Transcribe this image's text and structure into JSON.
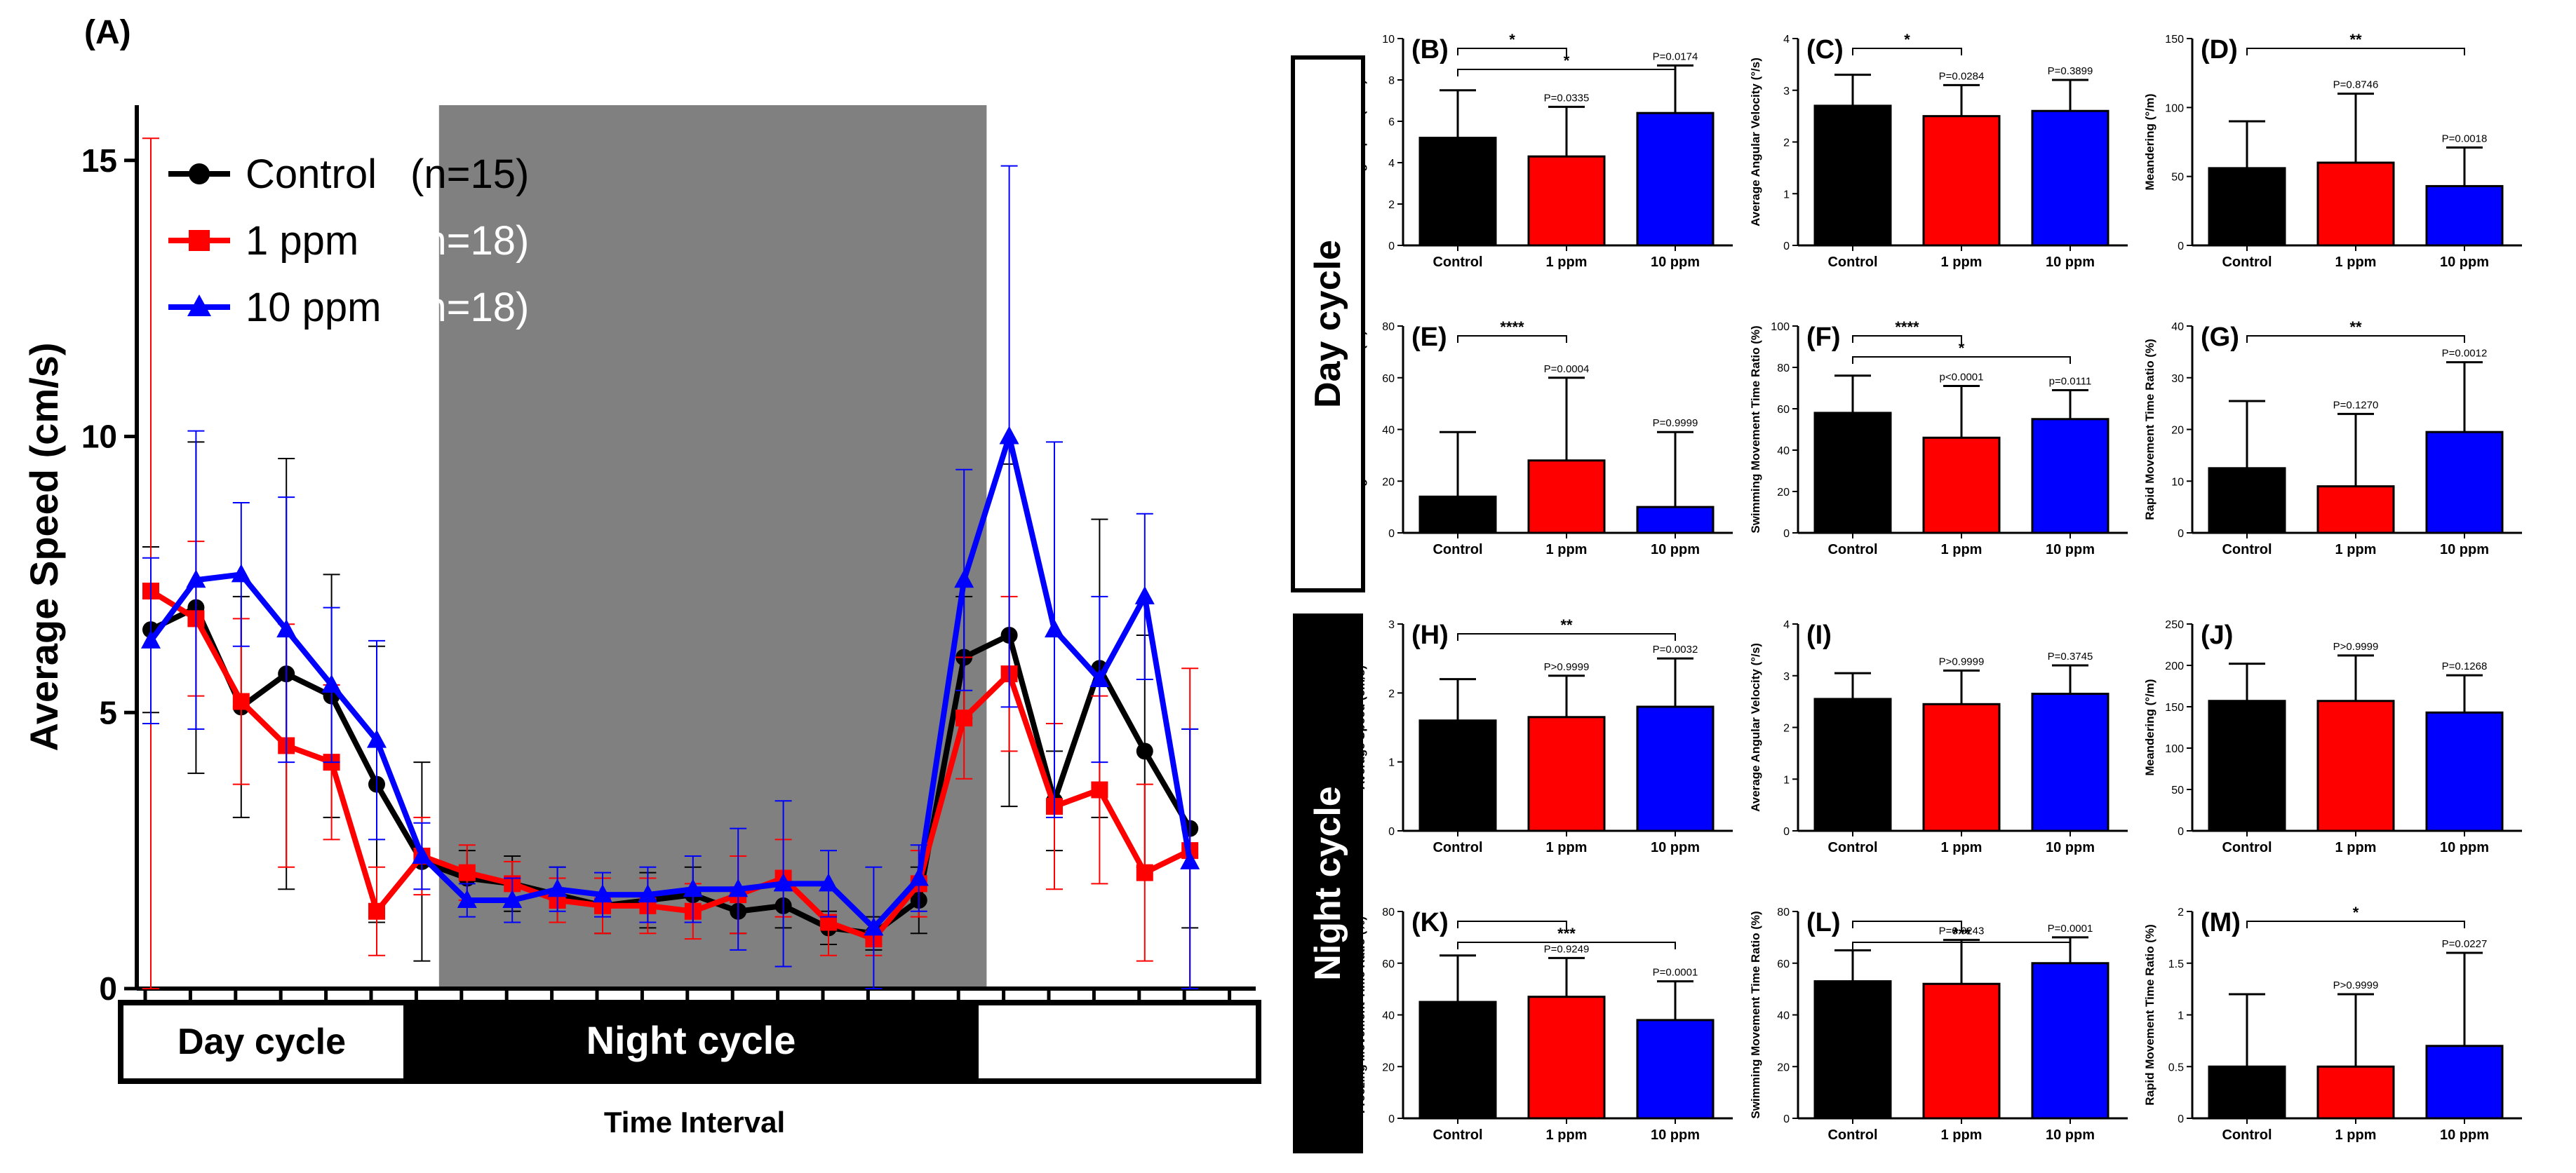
{
  "colors": {
    "control": "#000000",
    "ppm1": "#ff0000",
    "ppm10": "#0000ff",
    "night_shade": "#808080"
  },
  "chart_data": [
    {
      "id": "A",
      "type": "line",
      "panel_label": "(A)",
      "ylabel": "Average Speed (cm/s)",
      "xlabel": "Time Interval",
      "ylim": [
        0,
        16
      ],
      "yticks": [
        0,
        5,
        10,
        15
      ],
      "n_points": 24,
      "night_range_index": [
        7,
        18.5
      ],
      "cycle_bar": {
        "day_label": "Day cycle",
        "night_label": "Night cycle"
      },
      "legend": [
        {
          "name": "Control",
          "n": "(n=15)",
          "marker": "circle"
        },
        {
          "name": "1 ppm",
          "n": "(n=18)",
          "marker": "square"
        },
        {
          "name": "10 ppm",
          "n": "(n=18)",
          "marker": "triangle"
        }
      ],
      "series": [
        {
          "name": "Control",
          "marker": "circle",
          "values": [
            6.5,
            6.9,
            5.1,
            5.7,
            5.3,
            3.7,
            2.3,
            2.0,
            1.9,
            1.7,
            1.5,
            1.6,
            1.7,
            1.4,
            1.5,
            1.1,
            1.0,
            1.6,
            6.0,
            6.4,
            3.4,
            5.8,
            4.3,
            2.9
          ],
          "errors": [
            1.5,
            3.0,
            2.0,
            3.9,
            2.2,
            2.5,
            1.8,
            0.5,
            0.5,
            0.5,
            0.5,
            0.5,
            0.5,
            0.4,
            0.4,
            0.3,
            0.3,
            0.6,
            1.1,
            3.1,
            0.9,
            2.7,
            2.1,
            1.8
          ]
        },
        {
          "name": "1 ppm",
          "marker": "square",
          "values": [
            7.2,
            6.7,
            5.2,
            4.4,
            4.1,
            1.4,
            2.4,
            2.1,
            1.9,
            1.6,
            1.5,
            1.5,
            1.4,
            1.7,
            2.0,
            1.2,
            0.9,
            1.9,
            4.9,
            5.7,
            3.3,
            3.6,
            2.1,
            2.5
          ],
          "errors": [
            8.2,
            1.4,
            1.5,
            2.2,
            1.4,
            0.8,
            0.7,
            0.5,
            0.4,
            0.4,
            0.5,
            0.5,
            0.5,
            0.7,
            0.7,
            0.6,
            0.3,
            0.6,
            1.1,
            1.4,
            1.5,
            1.7,
            1.6,
            3.3
          ]
        },
        {
          "name": "10 ppm",
          "marker": "triangle",
          "values": [
            6.3,
            7.4,
            7.5,
            6.5,
            5.5,
            4.5,
            2.4,
            1.6,
            1.6,
            1.8,
            1.7,
            1.7,
            1.8,
            1.8,
            1.9,
            1.9,
            1.1,
            2.0,
            7.4,
            10.0,
            6.5,
            5.6,
            7.1,
            2.3
          ],
          "errors": [
            1.5,
            2.7,
            1.3,
            2.4,
            1.4,
            1.8,
            0.6,
            0.3,
            0.4,
            0.4,
            0.4,
            0.5,
            0.6,
            1.1,
            1.5,
            0.6,
            1.1,
            0.6,
            2.0,
            4.9,
            3.4,
            1.5,
            1.5,
            2.4
          ]
        }
      ]
    },
    {
      "id": "B",
      "type": "bar",
      "panel_label": "(B)",
      "ylabel": "Average Speed (cm/s)",
      "categories": [
        "Control",
        "1 ppm",
        "10 ppm"
      ],
      "values": [
        5.2,
        4.3,
        6.4
      ],
      "errors": [
        2.3,
        2.4,
        2.3
      ],
      "ylim": [
        0,
        10
      ],
      "yticks": [
        0,
        2,
        4,
        6,
        8,
        10
      ],
      "pvalues": [
        "",
        "P=0.0335",
        "P=0.0174"
      ],
      "significance": [
        {
          "from": 0,
          "to": 1,
          "label": "*"
        },
        {
          "from": 0,
          "to": 2,
          "label": "*"
        }
      ]
    },
    {
      "id": "C",
      "type": "bar",
      "panel_label": "(C)",
      "ylabel": "Average Angular Velocity (°/s)",
      "categories": [
        "Control",
        "1 ppm",
        "10 ppm"
      ],
      "values": [
        2.7,
        2.5,
        2.6
      ],
      "errors": [
        0.6,
        0.6,
        0.6
      ],
      "ylim": [
        0,
        4
      ],
      "yticks": [
        0,
        1,
        2,
        3,
        4
      ],
      "pvalues": [
        "",
        "P=0.0284",
        "P=0.3899"
      ],
      "significance": [
        {
          "from": 0,
          "to": 1,
          "label": "*"
        }
      ]
    },
    {
      "id": "D",
      "type": "bar",
      "panel_label": "(D)",
      "ylabel": "Meandering (°/m)",
      "categories": [
        "Control",
        "1 ppm",
        "10 ppm"
      ],
      "values": [
        56,
        60,
        43
      ],
      "errors": [
        34,
        50,
        28
      ],
      "ylim": [
        0,
        150
      ],
      "yticks": [
        0,
        50,
        100,
        150
      ],
      "pvalues": [
        "",
        "P=0.8746",
        "P=0.0018"
      ],
      "significance": [
        {
          "from": 0,
          "to": 2,
          "label": "**"
        }
      ]
    },
    {
      "id": "E",
      "type": "bar",
      "panel_label": "(E)",
      "ylabel": "Freezing Movement Time Ratio (%)",
      "categories": [
        "Control",
        "1 ppm",
        "10 ppm"
      ],
      "values": [
        14,
        28,
        10
      ],
      "errors": [
        25,
        32,
        29
      ],
      "ylim": [
        0,
        80
      ],
      "yticks": [
        0,
        20,
        40,
        60,
        80
      ],
      "pvalues": [
        "",
        "P=0.0004",
        "P=0.9999"
      ],
      "significance": [
        {
          "from": 0,
          "to": 1,
          "label": "****"
        }
      ]
    },
    {
      "id": "F",
      "type": "bar",
      "panel_label": "(F)",
      "ylabel": "Swimming Movement Time Ratio (%)",
      "categories": [
        "Control",
        "1 ppm",
        "10 ppm"
      ],
      "values": [
        58,
        46,
        55
      ],
      "errors": [
        18,
        25,
        14
      ],
      "ylim": [
        0,
        100
      ],
      "yticks": [
        0,
        20,
        40,
        60,
        80,
        100
      ],
      "pvalues": [
        "",
        "p<0.0001",
        "p=0.0111"
      ],
      "significance": [
        {
          "from": 0,
          "to": 1,
          "label": "****"
        },
        {
          "from": 0,
          "to": 2,
          "label": "*"
        }
      ]
    },
    {
      "id": "G",
      "type": "bar",
      "panel_label": "(G)",
      "ylabel": "Rapid Movement Time Ratio (%)",
      "categories": [
        "Control",
        "1 ppm",
        "10 ppm"
      ],
      "values": [
        12.5,
        9,
        19.5
      ],
      "errors": [
        13,
        14,
        13.5
      ],
      "ylim": [
        0,
        40
      ],
      "yticks": [
        0,
        10,
        20,
        30,
        40
      ],
      "pvalues": [
        "",
        "P=0.1270",
        "P=0.0012"
      ],
      "significance": [
        {
          "from": 0,
          "to": 2,
          "label": "**"
        }
      ]
    },
    {
      "id": "H",
      "type": "bar",
      "panel_label": "(H)",
      "ylabel": "Average Speed (cm/s)",
      "categories": [
        "Control",
        "1 ppm",
        "10 ppm"
      ],
      "values": [
        1.6,
        1.65,
        1.8
      ],
      "errors": [
        0.6,
        0.6,
        0.7
      ],
      "ylim": [
        0,
        3
      ],
      "yticks": [
        0,
        1,
        2,
        3
      ],
      "pvalues": [
        "",
        "P>0.9999",
        "P=0.0032"
      ],
      "significance": [
        {
          "from": 0,
          "to": 2,
          "label": "**"
        }
      ]
    },
    {
      "id": "I",
      "type": "bar",
      "panel_label": "(I)",
      "ylabel": "Average Angular Velocity (°/s)",
      "categories": [
        "Control",
        "1 ppm",
        "10 ppm"
      ],
      "values": [
        2.55,
        2.45,
        2.65
      ],
      "errors": [
        0.5,
        0.65,
        0.55
      ],
      "ylim": [
        0,
        4
      ],
      "yticks": [
        0,
        1,
        2,
        3,
        4
      ],
      "pvalues": [
        "",
        "P>0.9999",
        "P=0.3745"
      ],
      "significance": []
    },
    {
      "id": "J",
      "type": "bar",
      "panel_label": "(J)",
      "ylabel": "Meandering (°/m)",
      "categories": [
        "Control",
        "1 ppm",
        "10 ppm"
      ],
      "values": [
        157,
        157,
        143
      ],
      "errors": [
        45,
        55,
        45
      ],
      "ylim": [
        0,
        250
      ],
      "yticks": [
        0,
        50,
        100,
        150,
        200,
        250
      ],
      "pvalues": [
        "",
        "P>0.9999",
        "P=0.1268"
      ],
      "significance": []
    },
    {
      "id": "K",
      "type": "bar",
      "panel_label": "(K)",
      "ylabel": "Freezing Movement Time Ratio (%)",
      "categories": [
        "Control",
        "1 ppm",
        "10 ppm"
      ],
      "values": [
        45,
        47,
        38
      ],
      "errors": [
        18,
        15,
        15
      ],
      "ylim": [
        0,
        80
      ],
      "yticks": [
        0,
        20,
        40,
        60,
        80
      ],
      "pvalues": [
        "",
        "P=0.9249",
        "P=0.0001"
      ],
      "significance": [
        {
          "from": 0,
          "to": 1,
          "label": ""
        },
        {
          "from": 0,
          "to": 2,
          "label": "***"
        }
      ]
    },
    {
      "id": "L",
      "type": "bar",
      "panel_label": "(L)",
      "ylabel": "Swimming Movement Time Ratio (%)",
      "categories": [
        "Control",
        "1 ppm",
        "10 ppm"
      ],
      "values": [
        53,
        52,
        60
      ],
      "errors": [
        12,
        17,
        10
      ],
      "ylim": [
        0,
        80
      ],
      "yticks": [
        0,
        20,
        40,
        60,
        80
      ],
      "pvalues": [
        "",
        "P=0.9243",
        "P=0.0001"
      ],
      "significance": [
        {
          "from": 0,
          "to": 1,
          "label": ""
        },
        {
          "from": 0,
          "to": 2,
          "label": "***"
        }
      ]
    },
    {
      "id": "M",
      "type": "bar",
      "panel_label": "(M)",
      "ylabel": "Rapid Movement Time Ratio (%)",
      "categories": [
        "Control",
        "1 ppm",
        "10 ppm"
      ],
      "values": [
        0.5,
        0.5,
        0.7
      ],
      "errors": [
        0.7,
        0.7,
        0.9
      ],
      "ylim": [
        0,
        2
      ],
      "yticks": [
        0,
        0.5,
        1.0,
        1.5,
        2.0
      ],
      "pvalues": [
        "",
        "P>0.9999",
        "P=0.0227"
      ],
      "significance": [
        {
          "from": 0,
          "to": 2,
          "label": "*"
        }
      ]
    }
  ],
  "row_labels": {
    "day": "Day cycle",
    "night": "Night cycle"
  }
}
